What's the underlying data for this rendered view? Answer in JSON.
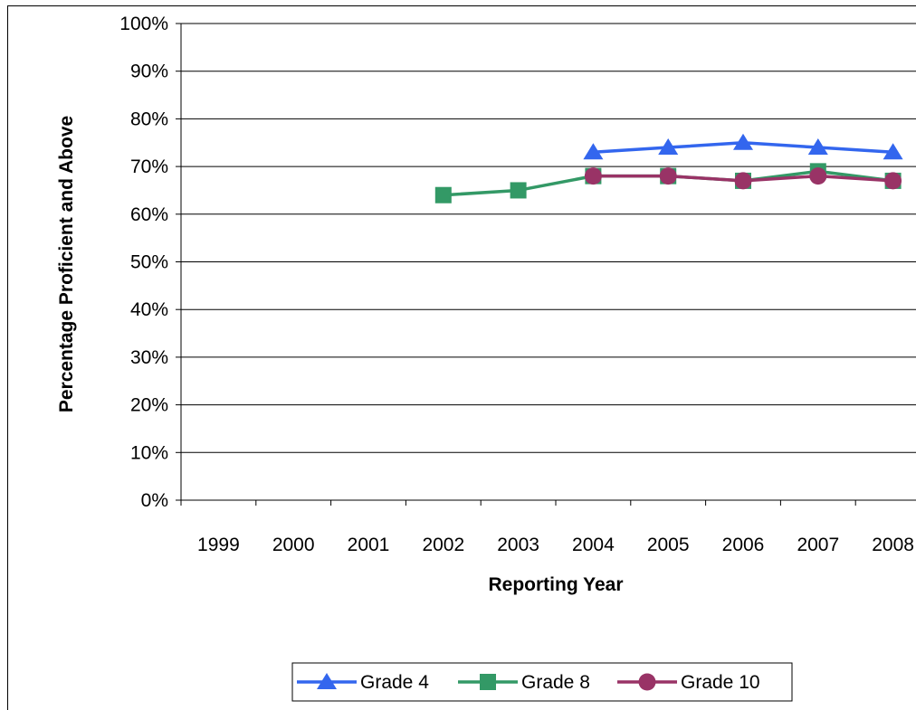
{
  "chart_data": {
    "type": "line",
    "title": "",
    "xlabel": "Reporting Year",
    "ylabel": "Percentage Proficient and Above",
    "categories": [
      "1999",
      "2000",
      "2001",
      "2002",
      "2003",
      "2004",
      "2005",
      "2006",
      "2007",
      "2008"
    ],
    "ylim": [
      0,
      100
    ],
    "yticks": [
      "0%",
      "10%",
      "20%",
      "30%",
      "40%",
      "50%",
      "60%",
      "70%",
      "80%",
      "90%",
      "100%"
    ],
    "grid": true,
    "legend_position": "bottom",
    "series": [
      {
        "name": "Grade 4",
        "color": "#3366ee",
        "marker": "triangle",
        "values": [
          null,
          null,
          null,
          null,
          null,
          73,
          74,
          75,
          74,
          73
        ]
      },
      {
        "name": "Grade 8",
        "color": "#339966",
        "marker": "square",
        "values": [
          null,
          null,
          null,
          64,
          65,
          68,
          68,
          67,
          69,
          67
        ]
      },
      {
        "name": "Grade 10",
        "color": "#993366",
        "marker": "circle",
        "values": [
          null,
          null,
          null,
          null,
          null,
          68,
          68,
          67,
          68,
          67
        ]
      }
    ]
  }
}
